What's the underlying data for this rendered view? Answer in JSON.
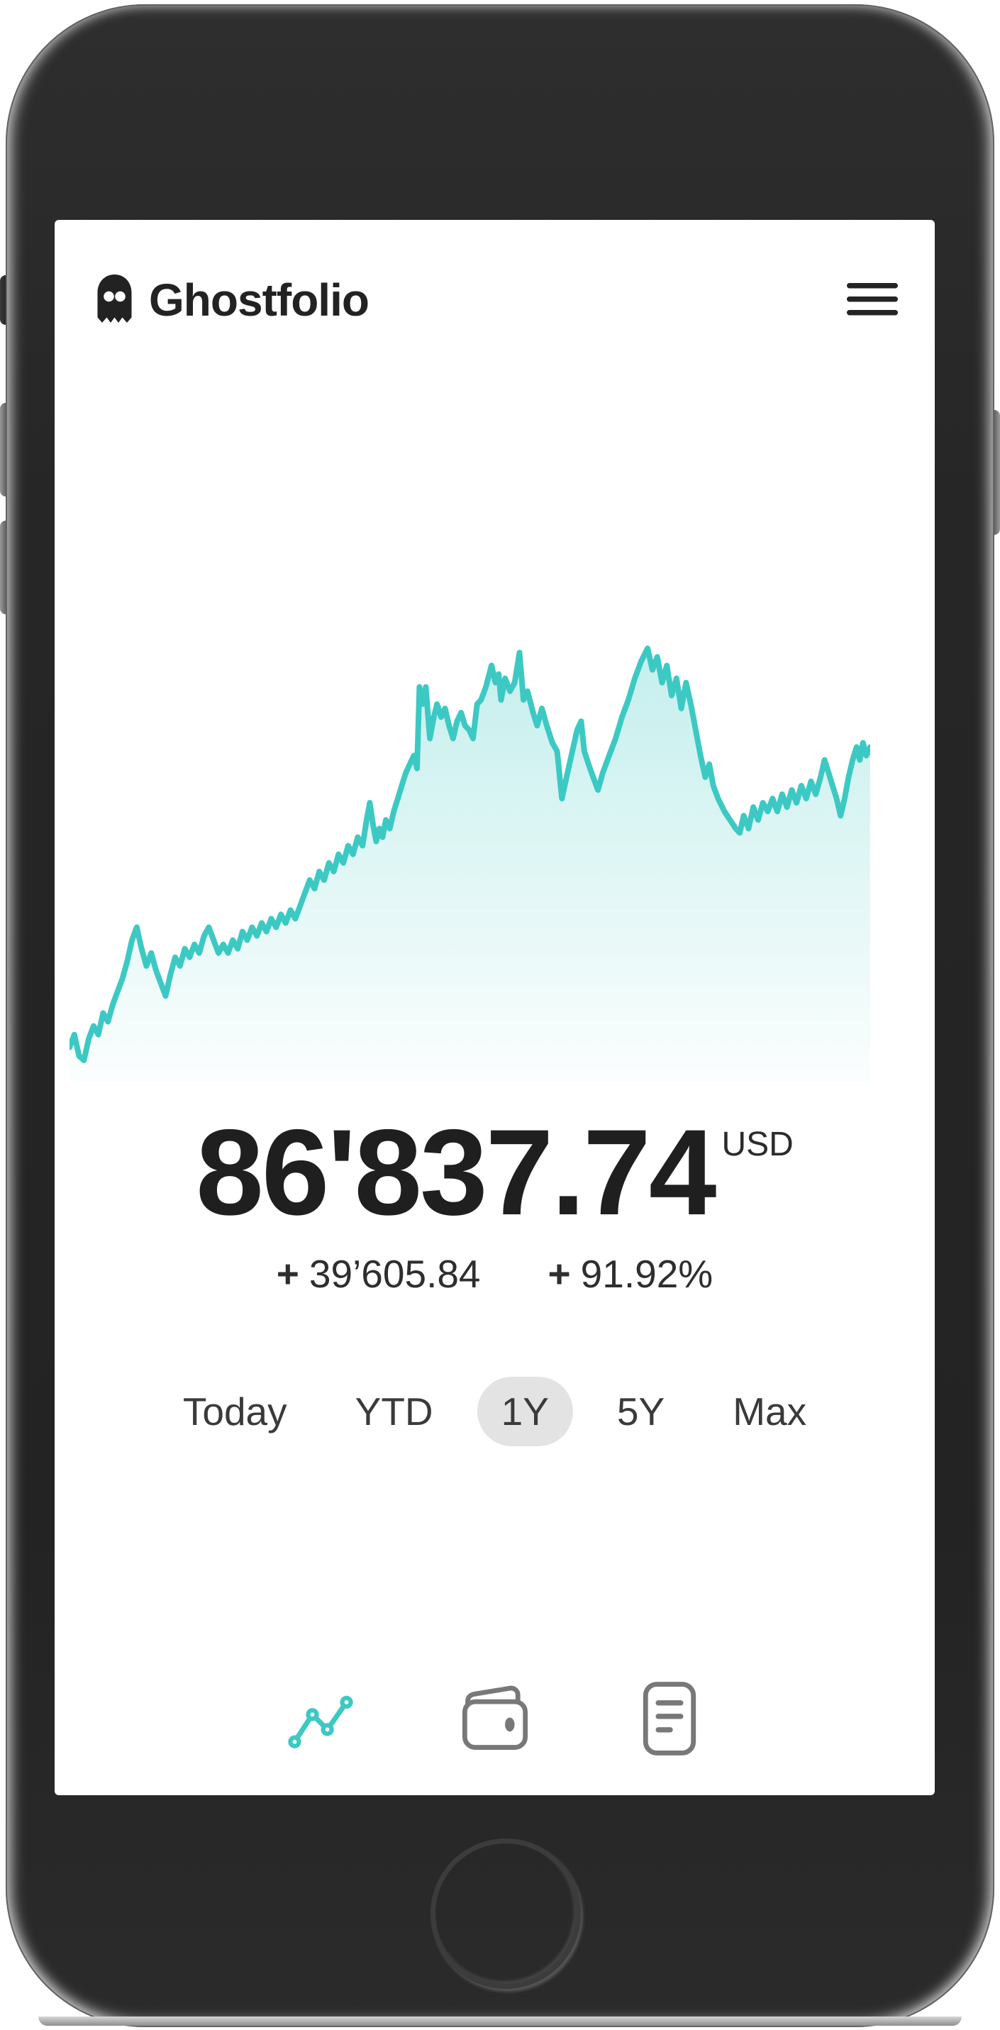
{
  "app": {
    "title": "Ghostfolio"
  },
  "summary": {
    "value": "86'837.74",
    "currency": "USD",
    "change_absolute_sign": "+",
    "change_absolute": "39’605.84",
    "change_percent_sign": "+",
    "change_percent": "91.92%"
  },
  "ranges": [
    {
      "label": "Today",
      "selected": false
    },
    {
      "label": "YTD",
      "selected": false
    },
    {
      "label": "1Y",
      "selected": true
    },
    {
      "label": "5Y",
      "selected": false
    },
    {
      "label": "Max",
      "selected": false
    }
  ],
  "nav": {
    "items": [
      {
        "icon": "analytics-icon",
        "active": true
      },
      {
        "icon": "wallet-icon",
        "active": false
      },
      {
        "icon": "reader-icon",
        "active": false
      }
    ]
  },
  "colors": {
    "accent_teal": "#3dc9c3",
    "positive_green": "#33a852",
    "text_dark": "#222222",
    "pill_gray": "#e3e3e3",
    "nav_inactive": "#787878"
  },
  "chart_data": {
    "type": "area",
    "timeframe": "1Y",
    "title": "Portfolio performance (1Y)",
    "axes_hidden": true,
    "legend": "none",
    "line_color": "#3dc9c3",
    "fill_top": "rgba(61,201,195,0.30)",
    "fill_bottom": "rgba(61,201,195,0.02)",
    "y_encoding": "normalized: 0 = chart top (max value), 100 = chart bottom",
    "x_encoding": "normalized: 0 = one year ago, 100 = today",
    "points": [
      [
        0,
        94
      ],
      [
        0.6,
        91
      ],
      [
        1.2,
        96
      ],
      [
        1.8,
        97
      ],
      [
        2.4,
        92
      ],
      [
        3,
        89
      ],
      [
        3.6,
        91
      ],
      [
        4.2,
        86
      ],
      [
        4.8,
        88
      ],
      [
        5.4,
        84
      ],
      [
        6,
        81
      ],
      [
        6.6,
        78
      ],
      [
        7.2,
        74
      ],
      [
        7.8,
        69
      ],
      [
        8.4,
        66
      ],
      [
        9,
        71
      ],
      [
        9.6,
        75
      ],
      [
        10.2,
        72
      ],
      [
        10.8,
        76
      ],
      [
        11.4,
        79
      ],
      [
        12,
        82
      ],
      [
        12.6,
        77
      ],
      [
        13.2,
        73
      ],
      [
        13.8,
        75
      ],
      [
        14.4,
        71
      ],
      [
        15,
        73
      ],
      [
        15.6,
        70
      ],
      [
        16.2,
        72
      ],
      [
        16.8,
        68
      ],
      [
        17.4,
        66
      ],
      [
        18,
        69
      ],
      [
        18.6,
        72
      ],
      [
        19.2,
        70
      ],
      [
        19.8,
        72
      ],
      [
        20.4,
        69
      ],
      [
        21,
        71
      ],
      [
        21.6,
        67
      ],
      [
        22.2,
        69
      ],
      [
        22.8,
        66
      ],
      [
        23.4,
        68
      ],
      [
        24,
        65
      ],
      [
        24.6,
        67
      ],
      [
        25.2,
        64
      ],
      [
        25.8,
        66
      ],
      [
        26.4,
        63
      ],
      [
        27,
        65
      ],
      [
        27.6,
        62
      ],
      [
        28.2,
        64
      ],
      [
        28.8,
        61
      ],
      [
        29.4,
        58
      ],
      [
        30,
        55
      ],
      [
        30.6,
        57
      ],
      [
        31.2,
        53
      ],
      [
        31.8,
        55
      ],
      [
        32.4,
        51
      ],
      [
        33,
        53
      ],
      [
        33.6,
        49
      ],
      [
        34.2,
        51
      ],
      [
        34.8,
        47
      ],
      [
        35.4,
        49
      ],
      [
        36,
        45
      ],
      [
        36.6,
        47
      ],
      [
        37.1,
        41
      ],
      [
        37.5,
        37
      ],
      [
        37.9,
        42
      ],
      [
        38.3,
        46
      ],
      [
        38.7,
        43
      ],
      [
        39.1,
        45
      ],
      [
        39.5,
        41
      ],
      [
        40,
        43
      ],
      [
        40.5,
        39
      ],
      [
        41,
        36
      ],
      [
        41.5,
        33
      ],
      [
        42,
        30
      ],
      [
        42.5,
        28
      ],
      [
        43,
        26
      ],
      [
        43.4,
        29
      ],
      [
        43.7,
        10
      ],
      [
        44.1,
        14
      ],
      [
        44.5,
        10
      ],
      [
        45,
        22
      ],
      [
        45.5,
        17
      ],
      [
        45.9,
        14
      ],
      [
        46.4,
        17
      ],
      [
        46.9,
        15
      ],
      [
        47.4,
        19
      ],
      [
        47.9,
        22
      ],
      [
        48.4,
        18
      ],
      [
        48.9,
        16
      ],
      [
        49.4,
        19
      ],
      [
        49.9,
        20
      ],
      [
        50.4,
        22
      ],
      [
        50.9,
        14
      ],
      [
        51.4,
        13
      ],
      [
        52,
        10
      ],
      [
        52.7,
        5
      ],
      [
        53.2,
        9
      ],
      [
        53.6,
        7
      ],
      [
        53.9,
        13
      ],
      [
        54.4,
        8
      ],
      [
        55,
        11
      ],
      [
        55.6,
        9
      ],
      [
        56.2,
        2
      ],
      [
        56.7,
        13
      ],
      [
        57.2,
        11
      ],
      [
        57.9,
        16
      ],
      [
        58.4,
        19
      ],
      [
        59,
        15
      ],
      [
        59.6,
        19
      ],
      [
        60.3,
        23
      ],
      [
        60.9,
        25
      ],
      [
        61.5,
        36
      ],
      [
        62.2,
        30
      ],
      [
        62.8,
        25
      ],
      [
        63.4,
        20
      ],
      [
        63.9,
        18
      ],
      [
        64.3,
        25
      ],
      [
        65,
        29
      ],
      [
        65.6,
        32
      ],
      [
        66,
        34
      ],
      [
        66.6,
        30
      ],
      [
        67.4,
        26
      ],
      [
        68.2,
        22
      ],
      [
        69,
        17
      ],
      [
        69.8,
        13
      ],
      [
        70.6,
        8
      ],
      [
        71.4,
        4
      ],
      [
        72.2,
        1
      ],
      [
        72.8,
        6
      ],
      [
        73.4,
        3
      ],
      [
        74,
        9
      ],
      [
        74.6,
        5
      ],
      [
        75.2,
        12
      ],
      [
        75.8,
        8
      ],
      [
        76.4,
        15
      ],
      [
        77,
        9
      ],
      [
        77.6,
        14
      ],
      [
        78.2,
        20
      ],
      [
        78.8,
        26
      ],
      [
        79.4,
        31
      ],
      [
        79.9,
        28
      ],
      [
        80.4,
        33
      ],
      [
        81,
        36
      ],
      [
        81.8,
        39
      ],
      [
        82.5,
        41
      ],
      [
        83.2,
        43
      ],
      [
        83.7,
        44
      ],
      [
        84.2,
        40
      ],
      [
        84.8,
        43
      ],
      [
        85.4,
        38
      ],
      [
        86,
        41
      ],
      [
        86.6,
        37
      ],
      [
        87.2,
        39
      ],
      [
        87.8,
        36
      ],
      [
        88.4,
        39
      ],
      [
        89,
        35
      ],
      [
        89.6,
        38
      ],
      [
        90.2,
        34
      ],
      [
        90.8,
        37
      ],
      [
        91.4,
        33
      ],
      [
        92,
        36
      ],
      [
        92.6,
        32
      ],
      [
        93.2,
        35
      ],
      [
        93.8,
        31
      ],
      [
        94.3,
        27
      ],
      [
        94.8,
        30
      ],
      [
        95.3,
        33
      ],
      [
        95.8,
        36
      ],
      [
        96.3,
        40
      ],
      [
        96.8,
        36
      ],
      [
        97.3,
        31
      ],
      [
        97.8,
        27
      ],
      [
        98.3,
        24
      ],
      [
        98.7,
        27
      ],
      [
        99.1,
        23
      ],
      [
        99.5,
        26
      ],
      [
        100,
        24
      ]
    ]
  }
}
